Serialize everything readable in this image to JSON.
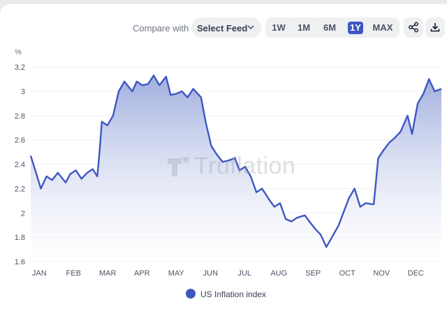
{
  "toolbar": {
    "compare_label": "Compare with",
    "feed_select_label": "Select Feed",
    "ranges": [
      "1W",
      "1M",
      "6M",
      "1Y",
      "MAX"
    ],
    "active_range": "1Y",
    "share_icon": "share-icon",
    "download_icon": "download-icon"
  },
  "watermark_text": "Truflation",
  "colors": {
    "line": "#3d57c2",
    "fill_top": "#9aa9dc",
    "fill_bottom": "#ffffff",
    "active": "#3d57c2"
  },
  "chart_data": {
    "type": "area",
    "y_unit": "%",
    "ylim": [
      1.6,
      3.2
    ],
    "yticks": [
      "1.6",
      "1.8",
      "2",
      "2.2",
      "2.4",
      "2.6",
      "2.8",
      "3",
      "3.2"
    ],
    "xticks": [
      "JAN",
      "FEB",
      "MAR",
      "APR",
      "MAY",
      "JUN",
      "JUL",
      "AUG",
      "SEP",
      "OCT",
      "NOV",
      "DEC"
    ],
    "grid": "horizontal",
    "legend_position": "bottom",
    "series": [
      {
        "name": "US Inflation index",
        "x": [
          "Jan 1",
          "Jan 5",
          "Jan 10",
          "Jan 15",
          "Jan 20",
          "Jan 25",
          "Feb 1",
          "Feb 5",
          "Feb 10",
          "Feb 15",
          "Feb 20",
          "Feb 25",
          "Mar 1",
          "Mar 3",
          "Mar 5",
          "Mar 10",
          "Mar 15",
          "Mar 20",
          "Mar 25",
          "Apr 1",
          "Apr 5",
          "Apr 10",
          "Apr 15",
          "Apr 20",
          "Apr 25",
          "May 1",
          "May 5",
          "May 10",
          "May 15",
          "May 20",
          "May 25",
          "Jun 1",
          "Jun 5",
          "Jun 10",
          "Jun 15",
          "Jun 20",
          "Jun 25",
          "Jul 1",
          "Jul 5",
          "Jul 10",
          "Jul 15",
          "Jul 20",
          "Jul 25",
          "Aug 1",
          "Aug 5",
          "Aug 10",
          "Aug 15",
          "Aug 20",
          "Aug 25",
          "Sep 1",
          "Sep 5",
          "Sep 10",
          "Sep 15",
          "Sep 20",
          "Sep 25",
          "Oct 1",
          "Oct 5",
          "Oct 10",
          "Oct 15",
          "Oct 20",
          "Oct 25",
          "Nov 1",
          "Nov 5",
          "Nov 10",
          "Nov 15",
          "Nov 20",
          "Nov 25",
          "Dec 1",
          "Dec 5",
          "Dec 10",
          "Dec 15",
          "Dec 20",
          "Dec 25",
          "Dec 31"
        ],
        "values": [
          2.47,
          2.35,
          2.2,
          2.3,
          2.27,
          2.33,
          2.25,
          2.32,
          2.35,
          2.28,
          2.33,
          2.36,
          2.3,
          2.5,
          2.75,
          2.72,
          2.8,
          3.0,
          3.08,
          3.0,
          3.08,
          3.05,
          3.06,
          3.13,
          3.05,
          3.12,
          2.97,
          2.98,
          3.0,
          2.95,
          3.02,
          2.95,
          2.75,
          2.55,
          2.48,
          2.42,
          2.43,
          2.45,
          2.35,
          2.38,
          2.3,
          2.17,
          2.2,
          2.1,
          2.05,
          2.08,
          1.95,
          1.93,
          1.96,
          1.98,
          1.93,
          1.87,
          1.82,
          1.72,
          1.8,
          1.9,
          2.0,
          2.12,
          2.2,
          2.05,
          2.08,
          2.07,
          2.45,
          2.52,
          2.58,
          2.62,
          2.67,
          2.8,
          2.65,
          2.9,
          2.98,
          3.1,
          3.0,
          3.02
        ]
      }
    ]
  }
}
